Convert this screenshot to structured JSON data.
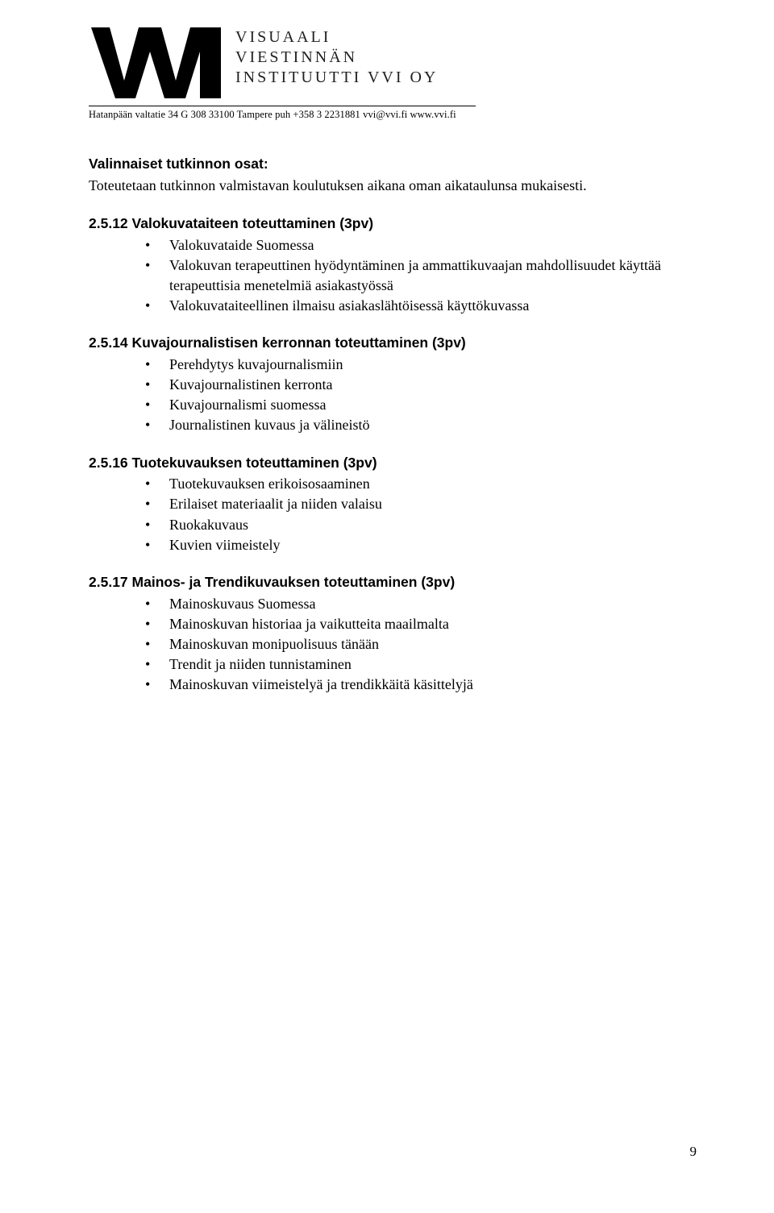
{
  "logo": {
    "line1": "VISUAALI",
    "line2": "VIESTINNÄN",
    "line3": "INSTITUUTTI VVI OY",
    "contact": "Hatanpään valtatie 34 G 308  33100 Tampere  puh +358 3 2231881   vvi@vvi.fi   www.vvi.fi",
    "mark_color": "#000000"
  },
  "body": {
    "heading": "Valinnaiset tutkinnon osat:",
    "intro": "Toteutetaan tutkinnon valmistavan koulutuksen aikana oman aikataulunsa mukaisesti.",
    "sections": [
      {
        "title": "2.5.12 Valokuvataiteen toteuttaminen (3pv)",
        "items": [
          "Valokuvataide Suomessa",
          "Valokuvan terapeuttinen hyödyntäminen ja ammattikuvaajan mahdollisuudet käyttää terapeuttisia menetelmiä asiakastyössä",
          "Valokuvataiteellinen ilmaisu asiakaslähtöisessä käyttökuvassa"
        ]
      },
      {
        "title": "2.5.14 Kuvajournalistisen kerronnan toteuttaminen (3pv)",
        "items": [
          "Perehdytys kuvajournalismiin",
          "Kuvajournalistinen kerronta",
          "Kuvajournalismi suomessa",
          "Journalistinen kuvaus ja välineistö"
        ]
      },
      {
        "title": "2.5.16 Tuotekuvauksen toteuttaminen (3pv)",
        "items": [
          "Tuotekuvauksen erikoisosaaminen",
          "Erilaiset materiaalit ja niiden valaisu",
          "Ruokakuvaus",
          "Kuvien viimeistely"
        ]
      },
      {
        "title": "2.5.17 Mainos- ja Trendikuvauksen toteuttaminen (3pv)",
        "items": [
          "Mainoskuvaus Suomessa",
          "Mainoskuvan historiaa ja vaikutteita maailmalta",
          "Mainoskuvan monipuolisuus tänään",
          "Trendit ja niiden tunnistaminen",
          "Mainoskuvan viimeistelyä ja trendikkäitä käsittelyjä"
        ]
      }
    ]
  },
  "page_number": "9"
}
